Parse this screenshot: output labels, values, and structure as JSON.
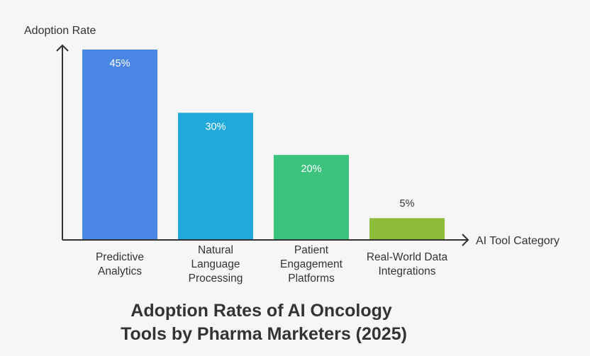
{
  "chart_data": {
    "type": "bar",
    "title": [
      "Adoption Rates of AI Oncology",
      "Tools by Pharma Marketers (2025)"
    ],
    "xlabel": "AI Tool Category",
    "ylabel": "Adoption Rate",
    "ylim": [
      0,
      45
    ],
    "grid": false,
    "legend": "none",
    "categories": [
      [
        "Predictive",
        "Analytics"
      ],
      [
        "Natural",
        "Language",
        "Processing"
      ],
      [
        "Patient",
        "Engagement",
        "Platforms"
      ],
      [
        "Real-World Data",
        "Integrations"
      ]
    ],
    "values": [
      45,
      30,
      20,
      5
    ],
    "value_labels": [
      "45%",
      "30%",
      "20%",
      "5%"
    ],
    "colors": [
      "#4a86e4",
      "#21a9dc",
      "#3cc47e",
      "#8dbc3a"
    ],
    "label_colors": [
      "#ffffff",
      "#ffffff",
      "#ffffff",
      "#333333"
    ]
  }
}
